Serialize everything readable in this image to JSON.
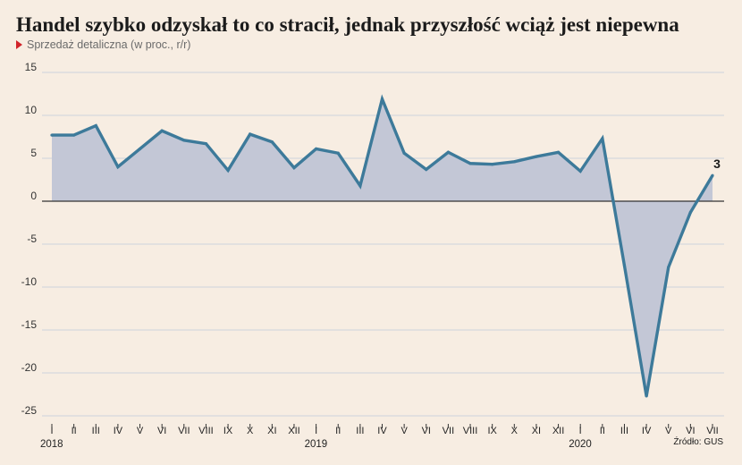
{
  "title": "Handel szybko odzyskał to co stracił, jednak przyszłość wciąż jest niepewna",
  "subtitle": "Sprzedaż detaliczna (w proc., r/r)",
  "source": "Źródło: GUS",
  "colors": {
    "background": "#f7ede2",
    "line": "#3d7a9a",
    "area": "#c3c7d6",
    "marker": "#d1232a",
    "grid": "#ccd3dc",
    "zero_line": "#333333"
  },
  "chart_data": {
    "type": "area",
    "title": "Handel szybko odzyskał to co stracił, jednak przyszłość wciąż jest niepewna",
    "subtitle": "Sprzedaż detaliczna (w proc., r/r)",
    "xlabel": "",
    "ylabel": "",
    "ylim": [
      -25,
      15
    ],
    "yticks": [
      15,
      10,
      5,
      0,
      -5,
      -10,
      -15,
      -20,
      -25
    ],
    "grid": true,
    "categories": [
      "I",
      "II",
      "III",
      "IV",
      "V",
      "VI",
      "VII",
      "VIII",
      "IX",
      "X",
      "XI",
      "XII",
      "I",
      "II",
      "III",
      "IV",
      "V",
      "VI",
      "VII",
      "VIII",
      "IX",
      "X",
      "XI",
      "XII",
      "I",
      "II",
      "III",
      "IV",
      "V",
      "VI",
      "VII"
    ],
    "years": [
      {
        "label": "2018",
        "index": 0
      },
      {
        "label": "2019",
        "index": 12
      },
      {
        "label": "2020",
        "index": 24
      }
    ],
    "series": [
      {
        "values": [
          7.7,
          7.7,
          8.8,
          4.0,
          6.1,
          8.2,
          7.1,
          6.7,
          3.6,
          7.8,
          6.9,
          3.9,
          6.1,
          5.6,
          1.8,
          11.9,
          5.6,
          3.7,
          5.7,
          4.4,
          4.3,
          4.6,
          5.2,
          5.7,
          3.5,
          7.3,
          -7.5,
          -22.7,
          -7.7,
          -1.3,
          3.0
        ]
      }
    ],
    "annotations": [
      {
        "index": 30,
        "text": "3"
      }
    ]
  }
}
